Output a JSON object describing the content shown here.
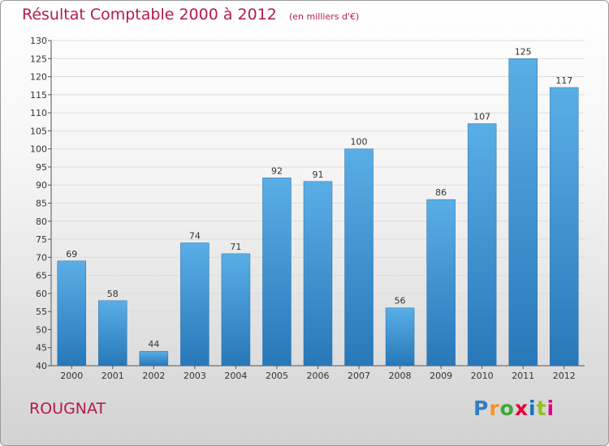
{
  "header": {
    "title": "Résultat Comptable 2000 à 2012",
    "subtitle": "(en milliers d'€)"
  },
  "footer": {
    "place": "ROUGNAT",
    "logo": "Proxiti"
  },
  "colors": {
    "title": "#b5194f",
    "bar_top": "#5aaee6",
    "bar_bottom": "#2878b9"
  },
  "chart_data": {
    "type": "bar",
    "title": "Résultat Comptable 2000 à 2012",
    "subtitle": "(en milliers d'€)",
    "xlabel": "",
    "ylabel": "",
    "categories": [
      "2000",
      "2001",
      "2002",
      "2003",
      "2004",
      "2005",
      "2006",
      "2007",
      "2008",
      "2009",
      "2010",
      "2011",
      "2012"
    ],
    "values": [
      69,
      58,
      44,
      74,
      71,
      92,
      91,
      100,
      56,
      86,
      107,
      125,
      117
    ],
    "ylim": [
      40,
      130
    ],
    "yticks": [
      40,
      45,
      50,
      55,
      60,
      65,
      70,
      75,
      80,
      85,
      90,
      95,
      100,
      105,
      110,
      115,
      120,
      125,
      130
    ],
    "grid": true
  }
}
